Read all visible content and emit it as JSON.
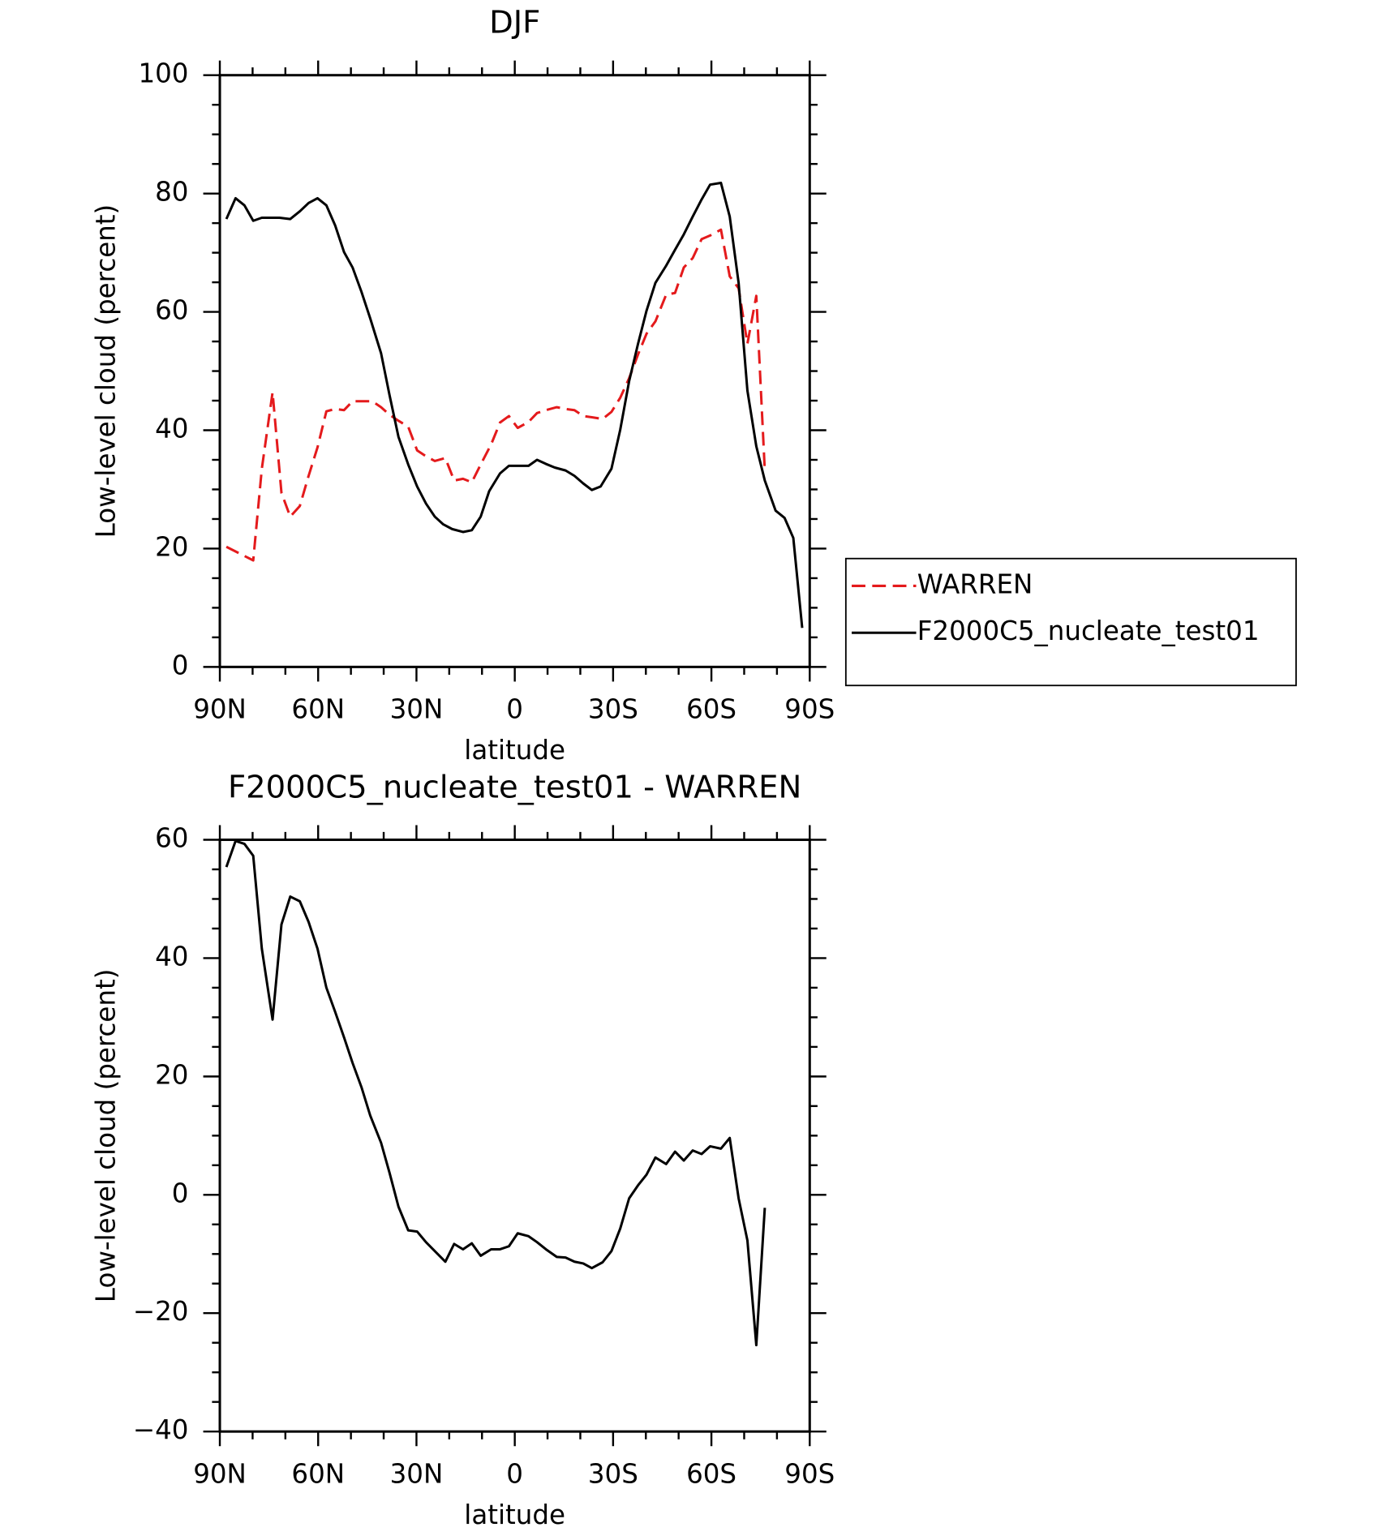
{
  "chart_data": [
    {
      "type": "line",
      "title": "DJF",
      "xlabel": "latitude",
      "ylabel": "Low-level cloud (percent)",
      "xlim": [
        90,
        -90
      ],
      "xticks": [
        {
          "value": 90,
          "label": "90N"
        },
        {
          "value": 60,
          "label": "60N"
        },
        {
          "value": 30,
          "label": "30N"
        },
        0,
        {
          "value": -30,
          "label": "30S"
        },
        {
          "value": -60,
          "label": "60S"
        },
        {
          "value": -90,
          "label": "90S"
        }
      ],
      "ylim": [
        0,
        100
      ],
      "yticks": [
        0,
        20,
        40,
        60,
        80,
        100
      ],
      "legend": "outside right",
      "series": [
        {
          "name": "WARREN",
          "color": "#e41a1c",
          "dashed": true,
          "x": [
            88,
            79.8,
            77.2,
            73.9,
            71.2,
            68.5,
            65.6,
            62.9,
            60.2,
            57.5,
            54.8,
            52.1,
            49.5,
            46.8,
            43.5,
            40.8,
            38.2,
            35.5,
            32.5,
            29.8,
            27.1,
            24.4,
            21.2,
            18.5,
            15.8,
            13.1,
            10.4,
            7.2,
            4.5,
            1.8,
            -0.9,
            -4.2,
            -6.8,
            -9.5,
            -12.8,
            -15.5,
            -18.2,
            -20.9,
            -23.5,
            -26.8,
            -29.5,
            -32.2,
            -34.9,
            -37.6,
            -40.2,
            -42.9,
            -46.2,
            -48.9,
            -51.6,
            -54.3,
            -57,
            -59.6,
            -62.9,
            -65.6,
            -68.3,
            -71,
            -73.7,
            -76.3
          ],
          "values": [
            20.3,
            18,
            33.5,
            46.4,
            29.4,
            25.4,
            27.2,
            32.3,
            37.1,
            43.2,
            43.6,
            43.4,
            44.9,
            44.9,
            44.9,
            43.9,
            42.6,
            41.6,
            40.6,
            36.6,
            35.6,
            34.8,
            35.3,
            31.5,
            31.8,
            31.2,
            34.2,
            37.6,
            41.3,
            42.4,
            40.4,
            41.4,
            42.9,
            43.4,
            43.9,
            43.6,
            43.4,
            42.4,
            42.2,
            41.9,
            43.1,
            45.5,
            48.8,
            52.8,
            56.3,
            58.4,
            62.9,
            63.2,
            67.5,
            69.1,
            72.3,
            72.9,
            73.9,
            66,
            64,
            54.6,
            62.7,
            33.2
          ]
        },
        {
          "name": "F2000C5_nucleate_test01",
          "color": "#000000",
          "dashed": false,
          "x": [
            88,
            85.2,
            82.5,
            79.8,
            77.2,
            71.8,
            68.5,
            65.6,
            62.9,
            60.2,
            57.5,
            54.8,
            52.1,
            49.5,
            46.8,
            44.1,
            40.8,
            38.2,
            35.5,
            32.5,
            29.8,
            27.1,
            24.4,
            21.8,
            19.1,
            15.8,
            13.1,
            10.4,
            7.8,
            4.5,
            1.8,
            -0.9,
            -4.2,
            -6.8,
            -9.5,
            -12.2,
            -15.5,
            -18.2,
            -20.9,
            -23.5,
            -26.2,
            -29.5,
            -32.2,
            -34.9,
            -37.6,
            -40.2,
            -42.9,
            -46.2,
            -48.9,
            -51.6,
            -54.3,
            -57,
            -59.6,
            -62.9,
            -65.6,
            -68.3,
            -71,
            -73.7,
            -76.3,
            -79.6,
            -82.3,
            -85,
            -87.7
          ],
          "values": [
            75.7,
            79.2,
            78,
            75.4,
            75.9,
            75.9,
            75.7,
            77,
            78.4,
            79.2,
            78,
            74.6,
            70.1,
            67.5,
            63.4,
            58.9,
            53,
            45.9,
            38.9,
            34.2,
            30.5,
            27.6,
            25.4,
            24.1,
            23.3,
            22.8,
            23.1,
            25.4,
            29.7,
            32.7,
            34,
            34,
            34,
            35,
            34.3,
            33.7,
            33.2,
            32.3,
            31,
            29.9,
            30.5,
            33.5,
            40.1,
            48.3,
            54.6,
            60.2,
            64.9,
            67.8,
            70.5,
            73.1,
            76.1,
            79,
            81.5,
            81.8,
            76.1,
            64.9,
            46.7,
            37.3,
            31.5,
            26.4,
            25.2,
            21.8,
            6.6
          ]
        }
      ]
    },
    {
      "type": "line",
      "title": "F2000C5_nucleate_test01 - WARREN",
      "xlabel": "latitude",
      "ylabel": "Low-level cloud (percent)",
      "xlim": [
        90,
        -90
      ],
      "xticks": [
        {
          "value": 90,
          "label": "90N"
        },
        {
          "value": 60,
          "label": "60N"
        },
        {
          "value": 30,
          "label": "30N"
        },
        0,
        {
          "value": -30,
          "label": "30S"
        },
        {
          "value": -60,
          "label": "60S"
        },
        {
          "value": -90,
          "label": "90S"
        }
      ],
      "ylim": [
        -40,
        60
      ],
      "yticks": [
        {
          "value": -40,
          "label": "−40"
        },
        {
          "value": -20,
          "label": "−20"
        },
        0,
        20,
        40,
        60
      ],
      "series": [
        {
          "color": "#000000",
          "dashed": false,
          "x": [
            88,
            85.2,
            82.5,
            79.8,
            77.2,
            73.9,
            71.2,
            68.5,
            65.6,
            62.9,
            60.2,
            57.5,
            54.8,
            52.1,
            49.5,
            46.8,
            44.1,
            40.8,
            38.2,
            35.5,
            32.5,
            29.8,
            27.1,
            24.4,
            21.2,
            18.5,
            15.8,
            13.1,
            10.4,
            7.2,
            4.5,
            1.8,
            -0.9,
            -4.2,
            -6.8,
            -9.5,
            -12.8,
            -15.5,
            -18.2,
            -20.9,
            -23.5,
            -26.8,
            -29.5,
            -32.2,
            -34.9,
            -37.6,
            -40.2,
            -42.9,
            -46.2,
            -48.9,
            -51.6,
            -54.3,
            -57,
            -59.6,
            -62.9,
            -65.6,
            -68.3,
            -71,
            -73.7,
            -76.3
          ],
          "values": [
            55.4,
            59.8,
            59.3,
            57.3,
            41.6,
            29.6,
            45.7,
            50.4,
            49.6,
            46.1,
            41.6,
            35,
            30.9,
            26.6,
            22.3,
            18.2,
            13.4,
            8.8,
            3.7,
            -2,
            -6,
            -6.2,
            -8,
            -9.5,
            -11.3,
            -8.3,
            -9.2,
            -8.2,
            -10.3,
            -9.2,
            -9.2,
            -8.7,
            -6.5,
            -7,
            -8,
            -9.2,
            -10.5,
            -10.6,
            -11.3,
            -11.6,
            -12.4,
            -11.4,
            -9.5,
            -5.7,
            -0.6,
            1.6,
            3.4,
            6.3,
            5.2,
            7.3,
            5.8,
            7.5,
            6.9,
            8.2,
            7.8,
            9.6,
            -0.6,
            -7.7,
            -25.4,
            -2.2
          ]
        }
      ]
    }
  ]
}
